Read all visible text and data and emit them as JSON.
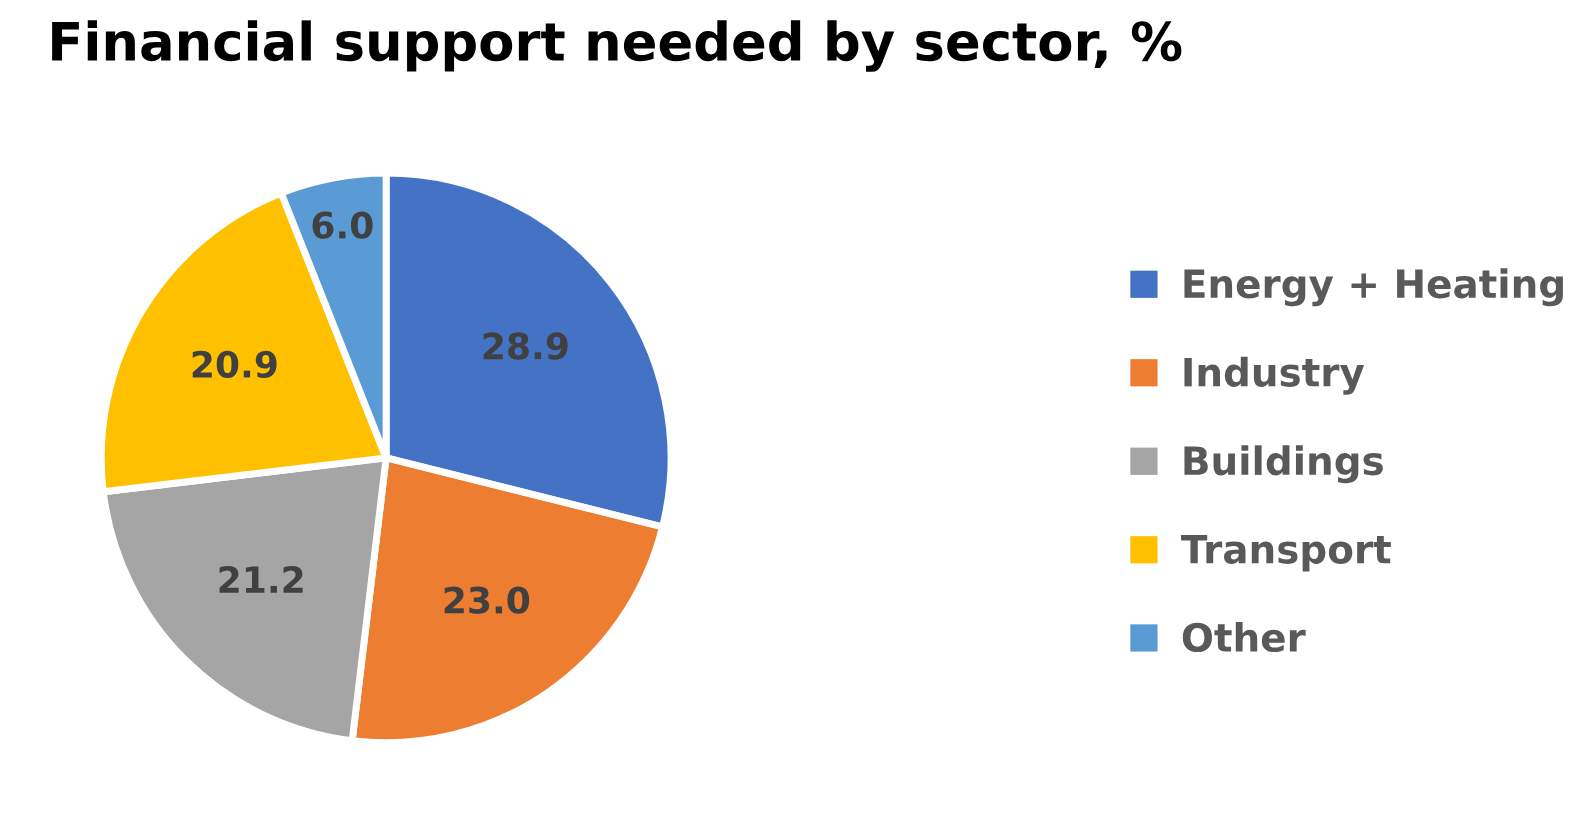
{
  "chart_data": {
    "type": "pie",
    "title": "Financial support needed by sector, %",
    "categories": [
      "Energy + Heating",
      "Industry",
      "Buildings",
      "Transport",
      "Other"
    ],
    "values": [
      28.9,
      23.0,
      21.2,
      20.9,
      6.0
    ],
    "value_labels": [
      "28.9",
      "23.0",
      "21.2",
      "20.9",
      "6.0"
    ],
    "colors": [
      "#4472c4",
      "#ed7d31",
      "#a5a5a5",
      "#ffc000",
      "#5b9bd5"
    ],
    "legend": "right"
  }
}
